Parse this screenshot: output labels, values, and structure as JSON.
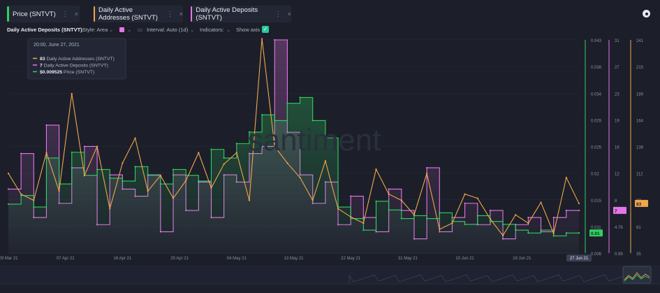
{
  "tabs": [
    {
      "label": "Price (SNTVT)",
      "color": "#2ed15e"
    },
    {
      "label": "Daily Active Addresses (SNTVT)",
      "color": "#f2a64a"
    },
    {
      "label": "Daily Active Deposits (SNTVT)",
      "color": "#e675e8"
    }
  ],
  "toolbar": {
    "metric_name": "Daily Active Deposits (SNTVT):",
    "style": "Style: Area",
    "interval": "Interval: Auto (1d)",
    "indicators": "Indicators:",
    "show_axis": "Show axis",
    "swatch_color": "#e675e8"
  },
  "tooltip": {
    "date": "20:00, June 27, 2021",
    "rows": [
      {
        "value": "83",
        "label": "Daily Active Addresses (SNTVT)",
        "color": "#f2a64a"
      },
      {
        "value": "7",
        "label": "Daily Active Deposits (SNTVT)",
        "color": "#e675e8"
      },
      {
        "value": "$0.009525",
        "label": "Price (SNTVT)",
        "color": "#2ed15e"
      }
    ]
  },
  "watermark": "santiment",
  "chart_data": {
    "type": "area",
    "x": [
      "2021-03-29",
      "2021-03-31",
      "2021-04-02",
      "2021-04-04",
      "2021-04-06",
      "2021-04-08",
      "2021-04-10",
      "2021-04-12",
      "2021-04-14",
      "2021-04-16",
      "2021-04-18",
      "2021-04-20",
      "2021-04-22",
      "2021-04-24",
      "2021-04-26",
      "2021-04-28",
      "2021-04-30",
      "2021-05-02",
      "2021-05-04",
      "2021-05-06",
      "2021-05-08",
      "2021-05-10",
      "2021-05-12",
      "2021-05-14",
      "2021-05-16",
      "2021-05-18",
      "2021-05-20",
      "2021-05-22",
      "2021-05-24",
      "2021-05-26",
      "2021-05-28",
      "2021-05-30",
      "2021-06-01",
      "2021-06-03",
      "2021-06-05",
      "2021-06-07",
      "2021-06-09",
      "2021-06-11",
      "2021-06-13",
      "2021-06-15",
      "2021-06-17",
      "2021-06-19",
      "2021-06-21",
      "2021-06-23",
      "2021-06-25",
      "2021-06-27"
    ],
    "x_tick_labels": [
      "29 Mar 21",
      "07 Apr 21",
      "16 Apr 21",
      "25 Apr 21",
      "04 May 21",
      "13 May 21",
      "22 May 21",
      "31 May 21",
      "10 Jun 21",
      "19 Jun 21",
      "27 Jun 21"
    ],
    "series": [
      {
        "name": "Daily Active Addresses (SNTVT)",
        "color": "#f2a64a",
        "axis_ticks": [
          "241",
          "215",
          "189",
          "164",
          "138",
          "112",
          "87",
          "61",
          "35"
        ],
        "ylim": [
          35,
          241
        ],
        "current_label": "83",
        "values": [
          112,
          92,
          86,
          132,
          95,
          189,
          110,
          138,
          78,
          122,
          146,
          95,
          110,
          88,
          105,
          132,
          98,
          121,
          132,
          86,
          242,
          138,
          122,
          108,
          86,
          124,
          78,
          70,
          64,
          116,
          92,
          86,
          72,
          112,
          58,
          64,
          92,
          88,
          68,
          52,
          72,
          64,
          84,
          54,
          108,
          83
        ]
      },
      {
        "name": "Daily Active Deposits (SNTVT)",
        "color": "#e675e8",
        "axis_ticks": [
          "31",
          "27",
          "23",
          "19",
          "16",
          "12",
          "8",
          "4.76",
          "0.99"
        ],
        "ylim": [
          0.99,
          31
        ],
        "current_label": "7",
        "values": [
          10,
          15,
          6,
          19,
          8,
          13,
          16,
          5,
          12,
          10,
          9,
          12,
          4,
          12,
          7,
          11,
          6,
          12,
          11,
          15,
          16,
          31,
          18,
          12,
          8,
          11,
          5,
          9,
          6,
          4,
          10,
          7,
          3,
          13,
          4,
          6,
          8,
          5,
          7,
          3,
          5,
          6,
          4,
          6,
          7,
          7
        ]
      },
      {
        "name": "Price (SNTVT)",
        "color": "#2ed15e",
        "axis_ticks": [
          "0.043",
          "0.038",
          "0.034",
          "0.029",
          "0.025",
          "0.02",
          "0.015",
          "0.011",
          "0.006"
        ],
        "ylim": [
          0.006,
          0.043
        ],
        "current_label": "0.01",
        "values": [
          0.0145,
          0.016,
          0.014,
          0.0225,
          0.018,
          0.0235,
          0.0195,
          0.0205,
          0.019,
          0.0185,
          0.021,
          0.0195,
          0.018,
          0.0205,
          0.0195,
          0.0185,
          0.024,
          0.0225,
          0.025,
          0.027,
          0.03,
          0.029,
          0.032,
          0.033,
          0.029,
          0.026,
          0.014,
          0.012,
          0.01,
          0.015,
          0.0135,
          0.012,
          0.0125,
          0.012,
          0.013,
          0.0115,
          0.011,
          0.0125,
          0.0115,
          0.011,
          0.01,
          0.0095,
          0.01,
          0.009,
          0.0095,
          0.0095
        ]
      }
    ],
    "xlabel": "",
    "ylabel": ""
  }
}
